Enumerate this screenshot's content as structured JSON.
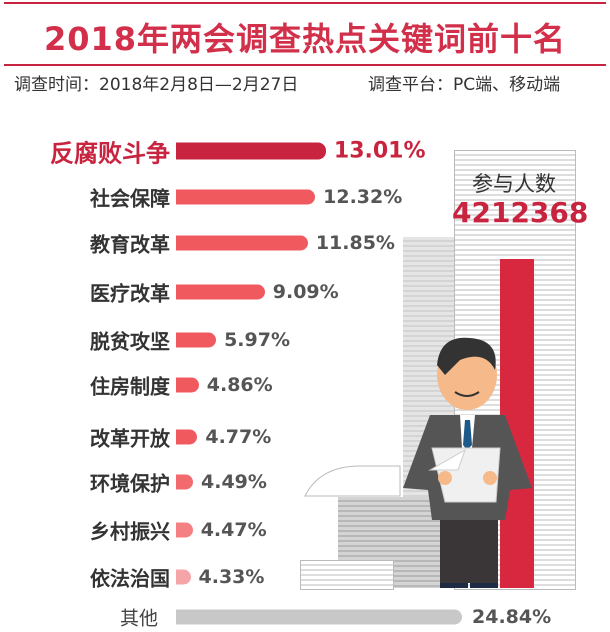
{
  "chart_data": {
    "type": "bar",
    "orientation": "horizontal",
    "title": "2018年两会调查热点关键词前十名",
    "subtitle_left": "调查时间：2018年2月8日—2月27日",
    "subtitle_right": "调查平台：PC端、移动端",
    "categories": [
      "反腐败斗争",
      "社会保障",
      "教育改革",
      "医疗改革",
      "脱贫攻坚",
      "住房制度",
      "改革开放",
      "环境保护",
      "乡村振兴",
      "依法治国",
      "其他"
    ],
    "values": [
      13.01,
      12.32,
      11.85,
      9.09,
      5.97,
      4.86,
      4.77,
      4.49,
      4.47,
      4.33,
      24.84
    ],
    "labels": [
      "13.01%",
      "12.32%",
      "11.85%",
      "9.09%",
      "5.97%",
      "4.86%",
      "4.77%",
      "4.49%",
      "4.47%",
      "4.33%",
      "24.84%"
    ],
    "colors": [
      "#c8243f",
      "#f05a5f",
      "#f05a5f",
      "#f05a5f",
      "#f05a5f",
      "#f05a5f",
      "#f05a5f",
      "#f26a6e",
      "#f48083",
      "#f5a5a8",
      "#c8c8c8"
    ],
    "unit": "%"
  },
  "participants": {
    "label": "参与人数",
    "value": "4212368"
  },
  "accent": "#c8243f"
}
